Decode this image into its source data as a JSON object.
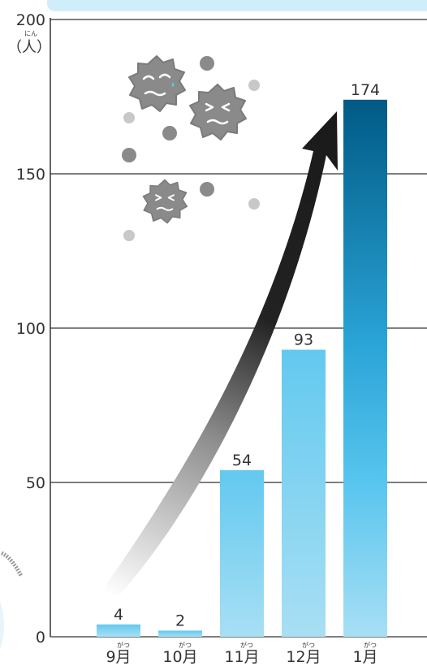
{
  "chart_data": {
    "type": "bar",
    "categories": [
      "9月",
      "10月",
      "11月",
      "12月",
      "1月"
    ],
    "category_readings": [
      "がつ",
      "がつ",
      "がつ",
      "がつ",
      "がつ"
    ],
    "values": [
      4,
      2,
      54,
      93,
      174
    ],
    "data_labels": [
      "4",
      "2",
      "54",
      "93",
      "174"
    ],
    "ylabel": "（人）",
    "ylabel_reading": "にん",
    "ylim": [
      0,
      200
    ],
    "yticks": [
      0,
      50,
      100,
      150,
      200
    ],
    "grid": true,
    "colors": {
      "bar_light": "#a6def3",
      "bar_mid": "#5bc6ee",
      "bar_dark": "#005a85",
      "trend_arrow": "#1e1e1e",
      "grid": "#333333",
      "virus": "#8a8a8a",
      "header_band": "#cfeef9"
    },
    "decorations": [
      "virus-icon",
      "virus-icon",
      "virus-icon",
      "trend-arrow-icon"
    ]
  }
}
